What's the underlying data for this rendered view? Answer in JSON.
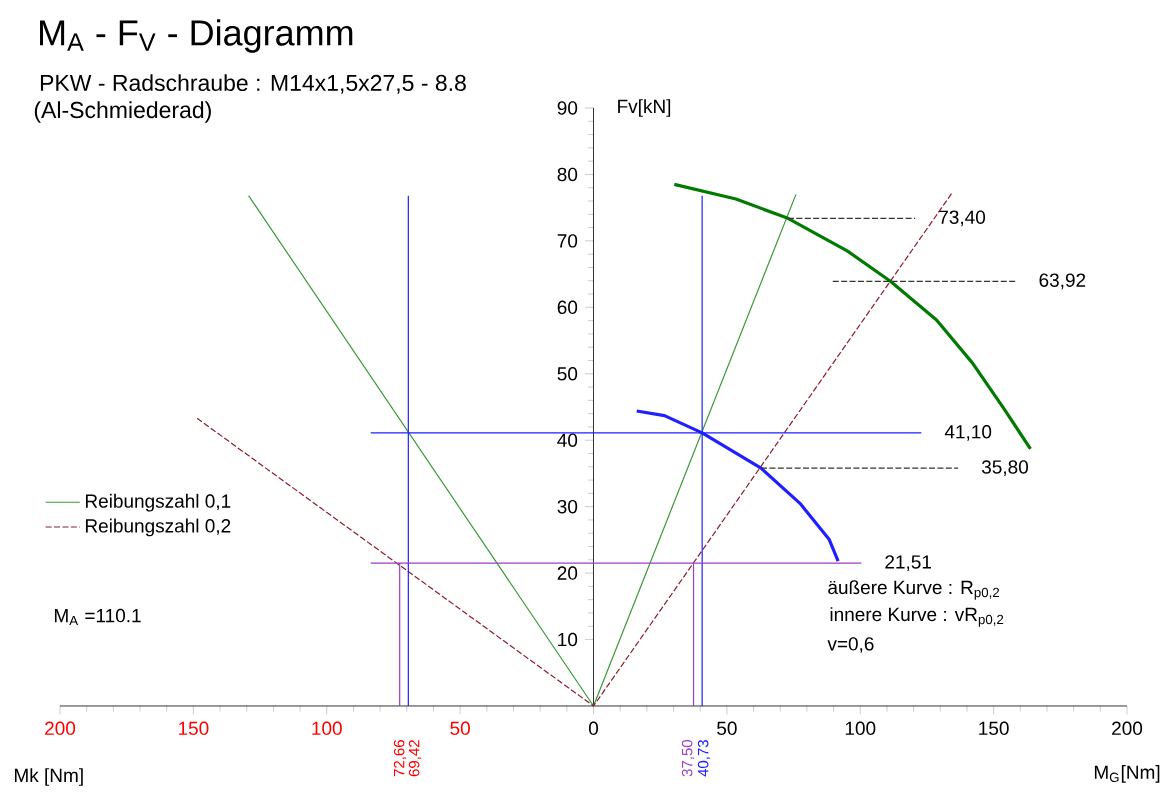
{
  "chart_data": {
    "type": "line",
    "title": "M$_{A}$ - F$_{V}$ - Diagramm",
    "subtitle": "PKW - Radschraube : M14x1,5x27,5 - 8.8",
    "xlabel": "M$_{G}$[Nm]",
    "ylabel": "Fv[kN]",
    "xlim": [
      -200,
      200
    ],
    "ylim": [
      0,
      90
    ],
    "xticks": [
      {
        "value": -200,
        "label": "200"
      },
      {
        "value": -150,
        "label": "150"
      },
      {
        "value": -100,
        "label": "100"
      },
      {
        "value": -50,
        "label": "50"
      },
      0,
      50,
      100,
      150,
      200
    ],
    "yticks": [
      10,
      20,
      30,
      40,
      50,
      60,
      70,
      80,
      90
    ],
    "legend": "left",
    "series": [
      {
        "name": "Reibungszahl 0,1",
        "color": "#3a9a3a",
        "line_style": "solid",
        "x": [
          -129.3,
          0,
          75.9
        ],
        "values": [
          76.8,
          0,
          77.0
        ]
      },
      {
        "name": "Reibungszahl 0,2",
        "color": "#8b1c2c",
        "line_style": "dashed",
        "x": [
          -148.6,
          0,
          134.2
        ],
        "values": [
          43.3,
          0,
          77.1
        ]
      },
      {
        "color": "#007a00",
        "line_style": "solid",
        "x": [
          30.3,
          53.4,
          72.9,
          95.1,
          111.3,
          128.6,
          142.1,
          154.1,
          163.8
        ],
        "values": [
          78.5,
          76.3,
          73.4,
          68.5,
          63.92,
          58.1,
          51.6,
          44.6,
          38.7
        ]
      },
      {
        "color": "#1f1fff",
        "line_style": "solid",
        "x": [
          16.2,
          26.6,
          40.73,
          62.8,
          77.4,
          88.3,
          91.7
        ],
        "values": [
          44.4,
          43.7,
          41.1,
          35.8,
          30.5,
          25.1,
          21.8
        ]
      },
      {
        "color": "#1f1fff",
        "line_style": "solid",
        "x": [
          -69.42,
          -69.42
        ],
        "values": [
          0,
          76.8
        ]
      },
      {
        "color": "#1f1fff",
        "line_style": "solid",
        "x": [
          40.73,
          40.73
        ],
        "values": [
          0,
          76.8
        ]
      },
      {
        "color": "#1f1fff",
        "line_style": "solid",
        "x": [
          -83.5,
          122.9
        ],
        "values": [
          41.1,
          41.1
        ]
      },
      {
        "color": "#9b3fc0",
        "line_style": "solid",
        "x": [
          -83.5,
          100.4
        ],
        "values": [
          21.51,
          21.51
        ]
      },
      {
        "color": "#9b3fc0",
        "line_style": "solid",
        "x": [
          -72.66,
          -72.66
        ],
        "values": [
          0,
          21.51
        ]
      },
      {
        "color": "#9b3fc0",
        "line_style": "solid",
        "x": [
          37.5,
          37.5
        ],
        "values": [
          0,
          21.51
        ]
      },
      {
        "color": "#333333",
        "line_style": "dashed",
        "x": [
          72.9,
          120.6
        ],
        "values": [
          73.4,
          73.4
        ]
      },
      {
        "color": "#333333",
        "line_style": "dashed",
        "x": [
          89.7,
          158.2
        ],
        "values": [
          63.92,
          63.92
        ]
      },
      {
        "color": "#333333",
        "line_style": "dashed",
        "x": [
          62.8,
          136.7
        ],
        "values": [
          35.8,
          35.8
        ]
      }
    ],
    "annotations": [
      "(Al-Schmiederad)",
      "M$_{A}$ =110.1",
      "äußere Kurve : R$_{p0,2}$",
      "innere Kurve : vR$_{p0,2}$",
      "v=0,6",
      "Mk [Nm]",
      {
        "text": "73,40",
        "x": 120.6,
        "y": 73.4
      },
      {
        "text": "63,92",
        "x": 158.2,
        "y": 63.92
      },
      {
        "text": "41,10",
        "x": 122.9,
        "y": 41.1
      },
      {
        "text": "35,80",
        "x": 136.7,
        "y": 35.8
      },
      {
        "text": "21,51",
        "x": 100.4,
        "y": 21.51
      },
      "72,66",
      "69,42",
      "37,50",
      "40,73"
    ]
  }
}
